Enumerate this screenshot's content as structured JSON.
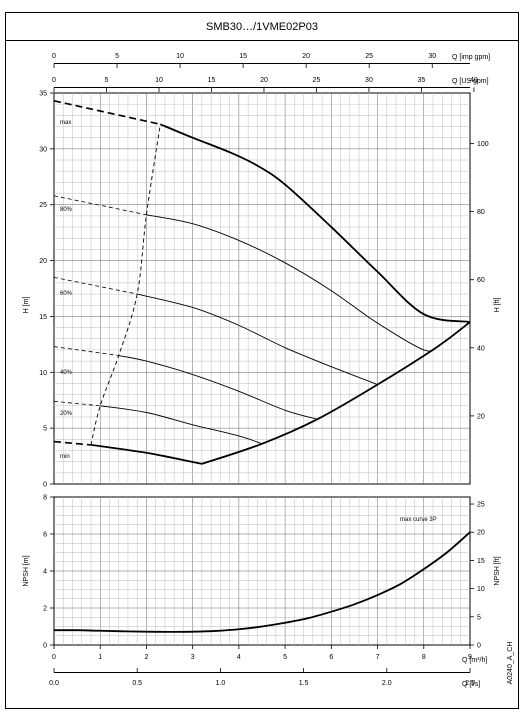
{
  "title": "SMB30…/1VME02P03",
  "axes": {
    "q_imp_label": "Q [imp gpm]",
    "q_us_label": "Q [US gpm]",
    "h_m_label": "H [m]",
    "h_ft_label": "H [ft]",
    "npsh_m_label": "NPSH [m]",
    "npsh_ft_label": "NPSH [ft]",
    "q_m3h_label": "Q [m³/h]",
    "q_ls_label": "Q [l/s]"
  },
  "ticks": {
    "imp": [
      "0",
      "5",
      "10",
      "15",
      "20",
      "25",
      "30"
    ],
    "us": [
      "0",
      "5",
      "10",
      "15",
      "20",
      "25",
      "30",
      "35",
      "40"
    ],
    "h_m": [
      "0",
      "5",
      "10",
      "15",
      "20",
      "25",
      "30",
      "35"
    ],
    "h_ft": [
      "20",
      "40",
      "60",
      "80",
      "100"
    ],
    "npsh_m": [
      "0",
      "2",
      "4",
      "6",
      "8"
    ],
    "npsh_ft": [
      "0",
      "5",
      "10",
      "15",
      "20",
      "25"
    ],
    "m3h": [
      "0",
      "1",
      "2",
      "3",
      "4",
      "5",
      "6",
      "7",
      "8",
      "9"
    ],
    "ls": [
      "0.0",
      "0.5",
      "1.0",
      "1.5",
      "2.0",
      "2.5"
    ]
  },
  "labels": {
    "max": "max",
    "p80": "80%",
    "p60": "60%",
    "p40": "40%",
    "p20": "20%",
    "min": "min",
    "npsh_curve": "max curve 3P",
    "code": "A0240_A_CH"
  },
  "chart_data": [
    {
      "type": "line",
      "xlabel": "Q [m³/h]",
      "ylabel": "H [m]",
      "ylabel_right": "H [ft]",
      "xlim": [
        0,
        9
      ],
      "ylim": [
        0,
        35
      ],
      "grid": true,
      "series": [
        {
          "name": "max",
          "x": [
            2.3,
            3.0,
            3.8,
            4.4,
            5.0,
            6.0,
            7.0,
            8.0,
            9.0
          ],
          "y": [
            32.2,
            31.0,
            29.7,
            28.5,
            26.8,
            23.0,
            19.0,
            15.2,
            14.5
          ]
        },
        {
          "name": "80%",
          "x": [
            2.0,
            3.0,
            4.0,
            5.0,
            6.0,
            7.0,
            8.0,
            8.3
          ],
          "y": [
            24.1,
            23.3,
            21.8,
            19.8,
            17.3,
            14.4,
            12.0,
            12.3
          ]
        },
        {
          "name": "60%",
          "x": [
            1.8,
            3.0,
            4.0,
            5.0,
            6.0,
            7.0
          ],
          "y": [
            17.0,
            15.8,
            14.2,
            12.2,
            10.5,
            8.9
          ]
        },
        {
          "name": "40%",
          "x": [
            1.4,
            2.0,
            3.0,
            4.0,
            5.0,
            5.7
          ],
          "y": [
            11.5,
            11.0,
            9.8,
            8.3,
            6.6,
            5.8
          ]
        },
        {
          "name": "20%",
          "x": [
            1.0,
            2.0,
            3.0,
            4.0,
            4.5
          ],
          "y": [
            7.0,
            6.4,
            5.3,
            4.3,
            3.6
          ]
        },
        {
          "name": "min",
          "x": [
            0.8,
            1.5,
            2.0,
            2.5,
            3.2
          ],
          "y": [
            3.5,
            3.1,
            2.8,
            2.4,
            1.8
          ]
        }
      ],
      "extrapolated_dashes": [
        {
          "x": [
            0,
            2.3
          ],
          "y": [
            34.3,
            32.2
          ]
        },
        {
          "x": [
            0,
            2.0
          ],
          "y": [
            25.8,
            24.1
          ]
        },
        {
          "x": [
            0,
            1.8
          ],
          "y": [
            18.5,
            17.0
          ]
        },
        {
          "x": [
            0,
            1.4
          ],
          "y": [
            12.3,
            11.5
          ]
        },
        {
          "x": [
            0,
            1.0
          ],
          "y": [
            7.4,
            7.0
          ]
        },
        {
          "x": [
            0,
            0.8
          ],
          "y": [
            3.8,
            3.5
          ]
        }
      ],
      "min_flow_line": {
        "x": [
          0.8,
          1.0,
          1.4,
          1.8,
          2.0,
          2.3
        ],
        "y": [
          3.5,
          7.0,
          11.5,
          17.0,
          24.1,
          32.2
        ]
      },
      "operating_envelope": {
        "x": [
          3.2,
          4.5,
          5.7,
          7.0,
          8.3,
          9.0
        ],
        "y": [
          1.8,
          3.6,
          5.8,
          8.9,
          12.3,
          14.5
        ]
      }
    },
    {
      "type": "line",
      "xlabel": "Q [m³/h]",
      "ylabel": "NPSH [m]",
      "ylabel_right": "NPSH [ft]",
      "xlim": [
        0,
        9
      ],
      "ylim": [
        0,
        8
      ],
      "grid": true,
      "series": [
        {
          "name": "max curve 3P",
          "x": [
            0,
            0.5,
            1.0,
            1.5,
            2.0,
            2.5,
            3.0,
            3.5,
            4.0,
            4.5,
            5.0,
            5.5,
            6.0,
            6.5,
            7.0,
            7.5,
            8.0,
            8.5,
            9.0
          ],
          "y": [
            0.8,
            0.8,
            0.77,
            0.74,
            0.72,
            0.71,
            0.72,
            0.76,
            0.85,
            1.0,
            1.2,
            1.45,
            1.8,
            2.2,
            2.7,
            3.3,
            4.1,
            5.0,
            6.1
          ]
        }
      ]
    }
  ]
}
